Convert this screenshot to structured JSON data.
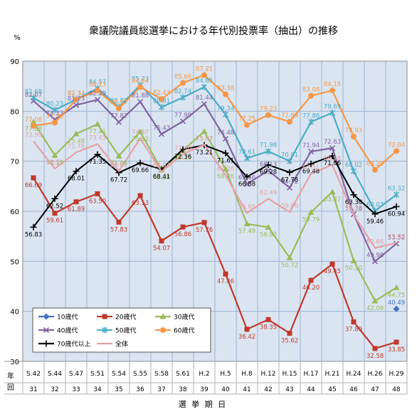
{
  "chart_data": {
    "type": "line",
    "title": "衆議院議員総選挙における年代別投票率（抽出）の推移",
    "ylabel": "%",
    "ylim": [
      30,
      90
    ],
    "yticks": [
      30,
      40,
      50,
      60,
      70,
      80,
      90
    ],
    "x_row1_label": "年",
    "x_row2_label": "回",
    "xlabel": "選 挙 期 日",
    "categories": [
      "S.42",
      "S.44",
      "S.47",
      "S.51",
      "S.54",
      "S.55",
      "S.58",
      "S.61",
      "H.2",
      "H.5",
      "H.8",
      "H.12",
      "H.15",
      "H.17",
      "H.21",
      "H.24",
      "H.26",
      "H.29"
    ],
    "sessions": [
      "31",
      "32",
      "33",
      "34",
      "35",
      "36",
      "37",
      "38",
      "39",
      "40",
      "41",
      "42",
      "43",
      "44",
      "45",
      "46",
      "47",
      "48"
    ],
    "grid": true,
    "legend_position": "lower-left",
    "series": [
      {
        "name": "10歳代",
        "color": "#4472c4",
        "marker": "diamond",
        "values": [
          null,
          null,
          null,
          null,
          null,
          null,
          null,
          null,
          null,
          null,
          null,
          null,
          null,
          null,
          null,
          null,
          null,
          40.49
        ],
        "labels": [
          null,
          null,
          null,
          null,
          null,
          null,
          null,
          null,
          null,
          null,
          null,
          null,
          null,
          null,
          null,
          null,
          null,
          "40.49"
        ]
      },
      {
        "name": "20歳代",
        "color": "#c0392b",
        "marker": "square",
        "values": [
          66.69,
          59.61,
          61.89,
          63.5,
          57.83,
          63.13,
          54.07,
          56.86,
          57.76,
          47.46,
          36.42,
          38.35,
          35.62,
          46.2,
          49.45,
          37.89,
          32.58,
          33.85
        ],
        "labels": [
          "66.69",
          "59.61",
          "61.89",
          "63.50",
          "57.83",
          "63.13",
          "54.07",
          "56.86",
          "57.76",
          "47.46",
          "36.42",
          "38.35",
          "35.62",
          "46.20",
          "49.45",
          "37.89",
          "32.58",
          "33.85"
        ]
      },
      {
        "name": "30歳代",
        "color": "#9bbb59",
        "marker": "triangle",
        "values": [
          77.88,
          71.19,
          75.48,
          77.41,
          71.06,
          75.92,
          68.28,
          72.15,
          75.97,
          68.46,
          57.49,
          56.82,
          50.72,
          59.79,
          63.87,
          50.1,
          42.09,
          44.75
        ],
        "labels": [
          "77.88",
          "71.19",
          "75.48",
          "77.41",
          "71.06",
          "75.92",
          "68.28",
          "72.15",
          "75.97",
          "68.46",
          "57.49",
          "56.82",
          "50.72",
          "59.79",
          "63.87",
          "50.10",
          "42.09",
          "44.75"
        ]
      },
      {
        "name": "40歳代",
        "color": "#8064a2",
        "marker": "x",
        "values": [
          82.07,
          78.33,
          81.23,
          82.29,
          77.82,
          81.88,
          75.43,
          77.99,
          81.44,
          74.48,
          65.46,
          68.13,
          64.72,
          71.94,
          72.63,
          59.38,
          49.98,
          53.52
        ],
        "labels": [
          "82.07",
          "78.33",
          "81.23",
          "82.29",
          "77.82",
          "81.88",
          "75.43",
          "77.99",
          "81.44",
          "74.48",
          "65.46",
          "68.13",
          "64.72",
          "71.94",
          "72.63",
          "59.38",
          "49.98",
          "53.52"
        ]
      },
      {
        "name": "50歳代",
        "color": "#4bacc6",
        "marker": "star",
        "values": [
          82.68,
          80.23,
          82.34,
          84.57,
          80.82,
          85.23,
          80.81,
          82.74,
          84.85,
          79.34,
          70.61,
          71.98,
          70.01,
          77.86,
          79.69,
          68.02,
          60.07,
          63.32
        ],
        "labels": [
          "82.68",
          "80.23",
          "82.34",
          "84.57",
          "80.82",
          "85.23",
          "80.81",
          "82.74",
          "84.85",
          "79.34",
          "70.61",
          "71.98",
          "70.01",
          "77.86",
          "79.69",
          "68.02",
          "60.07",
          "63.32"
        ]
      },
      {
        "name": "60歳代",
        "color": "#f79646",
        "marker": "circle",
        "values": [
          77.08,
          77.7,
          82.34,
          84.13,
          80.57,
          84.84,
          82.43,
          85.66,
          87.21,
          83.38,
          77.25,
          79.23,
          77.89,
          83.08,
          84.15,
          74.93,
          68.28,
          72.04
        ],
        "labels": [
          "77.08",
          "77.70",
          "82.34",
          "84.13",
          "80.57",
          "84.84",
          "82.43",
          "85.66",
          "87.21",
          "83.38",
          "77.25",
          "79.23",
          "77.89",
          "83.08",
          "84.15",
          "74.93",
          "68.28",
          "72.04"
        ]
      },
      {
        "name": "70歳代以上",
        "color": "#000000",
        "marker": "plus",
        "values": [
          56.83,
          62.52,
          68.01,
          71.35,
          67.72,
          69.66,
          68.41,
          72.36,
          73.21,
          71.61,
          66.88,
          69.28,
          67.78,
          69.48,
          71.06,
          63.3,
          59.46,
          60.94
        ],
        "labels": [
          "56.83",
          "62.52",
          "68.01",
          "71.35",
          "67.72",
          "69.66",
          "68.41",
          "72.36",
          "73.21",
          "71.61",
          "66.88",
          "69.28",
          "67.78",
          "69.48",
          "71.06",
          "63.30",
          "59.46",
          "60.94"
        ]
      },
      {
        "name": "全体",
        "color": "#e6a0a8",
        "marker": "none",
        "values": [
          73.99,
          68.51,
          71.76,
          73.45,
          68.01,
          74.57,
          67.94,
          71.4,
          73.31,
          67.26,
          59.65,
          62.49,
          59.86,
          67.51,
          69.28,
          59.32,
          52.66,
          53.68
        ],
        "labels": [
          "73.99",
          "68.51",
          "71.76",
          "73.45",
          "68.01",
          "74.57",
          "67.94",
          "71.40",
          "73.31",
          "67.26",
          "59.65",
          "62.49",
          "59.86",
          "67.51",
          "69.28",
          "59.32",
          "52.66",
          "53.68"
        ]
      }
    ]
  }
}
